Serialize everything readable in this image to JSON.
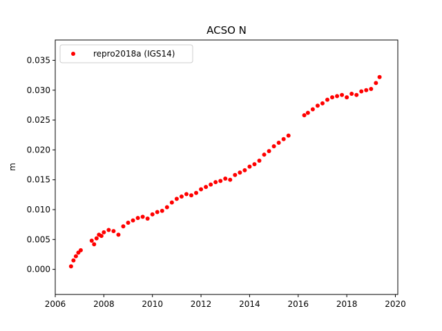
{
  "chart_data": {
    "type": "scatter",
    "title": "ACSO N",
    "xlabel": "",
    "ylabel": "m",
    "xlim": [
      2006.0,
      2020.1
    ],
    "ylim": [
      -0.0042,
      0.0384
    ],
    "xticks": [
      "2006",
      "2008",
      "2010",
      "2012",
      "2014",
      "2016",
      "2018",
      "2020"
    ],
    "xtick_values": [
      2006,
      2008,
      2010,
      2012,
      2014,
      2016,
      2018,
      2020
    ],
    "yticks": [
      "0.000",
      "0.005",
      "0.010",
      "0.015",
      "0.020",
      "0.025",
      "0.030",
      "0.035"
    ],
    "ytick_values": [
      0.0,
      0.005,
      0.01,
      0.015,
      0.02,
      0.025,
      0.03,
      0.035
    ],
    "grid": false,
    "legend_position": "top-left",
    "marker_color": "#ff0000",
    "series": [
      {
        "name": "repro2018a (IGS14)",
        "x": [
          2006.65,
          2006.75,
          2006.85,
          2006.95,
          2007.05,
          2007.5,
          2007.6,
          2007.7,
          2007.8,
          2007.9,
          2008.0,
          2008.2,
          2008.4,
          2008.6,
          2008.8,
          2009.0,
          2009.2,
          2009.4,
          2009.6,
          2009.8,
          2010.0,
          2010.2,
          2010.4,
          2010.6,
          2010.8,
          2011.0,
          2011.2,
          2011.4,
          2011.6,
          2011.8,
          2012.0,
          2012.2,
          2012.4,
          2012.6,
          2012.8,
          2013.0,
          2013.2,
          2013.4,
          2013.6,
          2013.8,
          2014.0,
          2014.2,
          2014.4,
          2014.6,
          2014.8,
          2015.0,
          2015.2,
          2015.4,
          2015.6,
          2016.25,
          2016.4,
          2016.6,
          2016.8,
          2017.0,
          2017.2,
          2017.4,
          2017.6,
          2017.8,
          2018.0,
          2018.2,
          2018.4,
          2018.6,
          2018.8,
          2019.0,
          2019.2,
          2019.35
        ],
        "y": [
          0.0005,
          0.0015,
          0.0022,
          0.0028,
          0.0032,
          0.0048,
          0.0042,
          0.0052,
          0.0058,
          0.0056,
          0.0062,
          0.0066,
          0.0064,
          0.0058,
          0.0072,
          0.0078,
          0.0082,
          0.0086,
          0.0088,
          0.0085,
          0.0092,
          0.0096,
          0.0098,
          0.0104,
          0.0112,
          0.0118,
          0.0122,
          0.0126,
          0.0124,
          0.0128,
          0.0134,
          0.0138,
          0.0142,
          0.0146,
          0.0148,
          0.0152,
          0.015,
          0.0158,
          0.0162,
          0.0166,
          0.0172,
          0.0176,
          0.0182,
          0.0192,
          0.0198,
          0.0206,
          0.0212,
          0.0218,
          0.0224,
          0.0258,
          0.0262,
          0.0268,
          0.0274,
          0.0278,
          0.0284,
          0.0288,
          0.029,
          0.0292,
          0.0288,
          0.0294,
          0.0292,
          0.0298,
          0.03,
          0.0302,
          0.0312,
          0.0322
        ]
      }
    ]
  }
}
